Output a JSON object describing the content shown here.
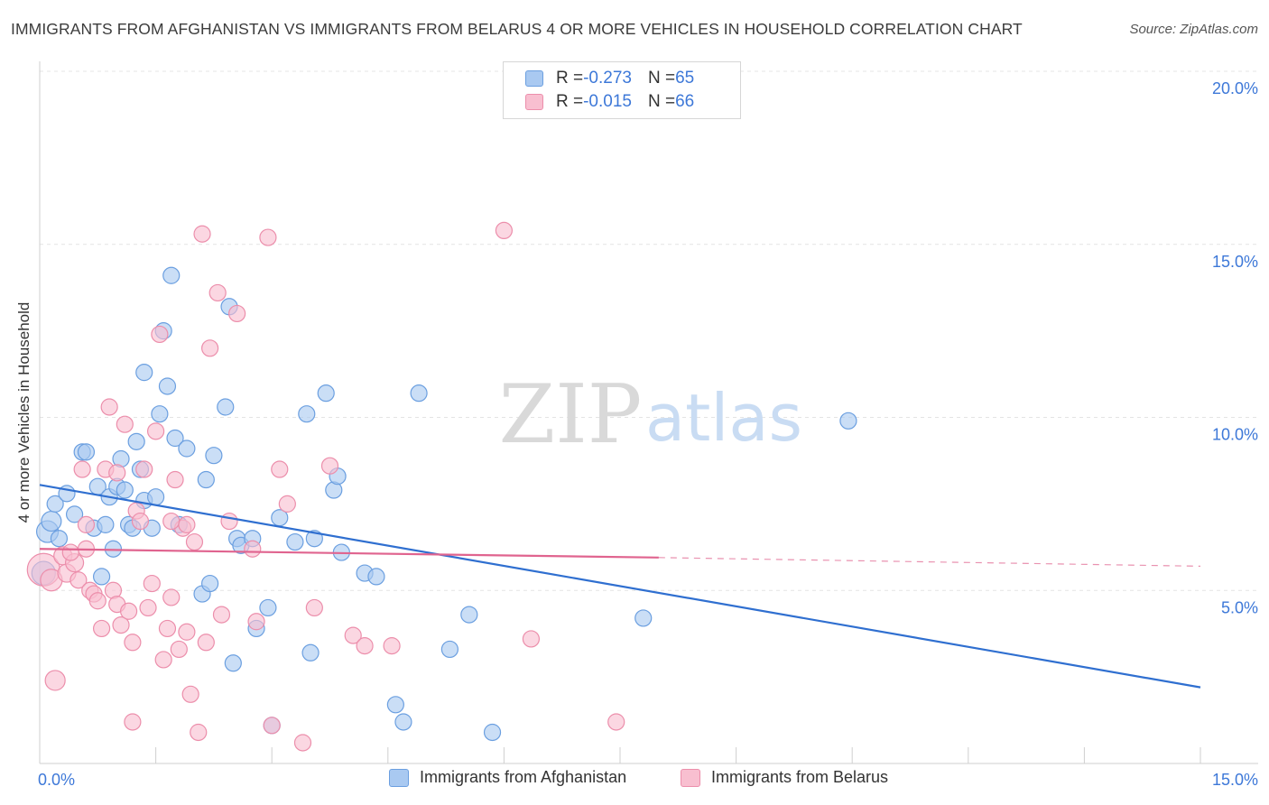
{
  "title": "IMMIGRANTS FROM AFGHANISTAN VS IMMIGRANTS FROM BELARUS 4 OR MORE VEHICLES IN HOUSEHOLD CORRELATION CHART",
  "source": "Source: ZipAtlas.com",
  "watermark": {
    "zip": "ZIP",
    "atlas": "atlas"
  },
  "legend": {
    "rows": [
      {
        "r_label": "R = ",
        "r_value": "-0.273",
        "n_label": "N = ",
        "n_value": "65"
      },
      {
        "r_label": "R = ",
        "r_value": "-0.015",
        "n_label": "N = ",
        "n_value": "66"
      }
    ]
  },
  "chart_data": {
    "type": "scatter",
    "xlabel": "",
    "ylabel": "4 or more Vehicles in Household",
    "xlim": [
      0,
      15
    ],
    "ylim": [
      0,
      20
    ],
    "x_tick_labels": [
      {
        "value": 0,
        "label": "0.0%"
      },
      {
        "value": 15,
        "label": "15.0%"
      }
    ],
    "y_tick_labels": [
      {
        "value": 5,
        "label": "5.0%"
      },
      {
        "value": 10,
        "label": "10.0%"
      },
      {
        "value": 15,
        "label": "15.0%"
      },
      {
        "value": 20,
        "label": "20.0%"
      }
    ],
    "grid": true,
    "colors": {
      "afghanistan_fill": "#a9c9f1",
      "afghanistan_stroke": "#6b9fe0",
      "afghanistan_line": "#2f6fd0",
      "belarus_fill": "#f8bfd0",
      "belarus_stroke": "#ec8eab",
      "belarus_line": "#e0648f",
      "tick_label": "#3d78d8",
      "grid": "#e4e4e4",
      "axis": "#cfcfcf"
    },
    "series": [
      {
        "name": "Immigrants from Afghanistan",
        "points": [
          [
            0.05,
            5.5,
            13
          ],
          [
            0.1,
            6.7,
            12
          ],
          [
            0.15,
            7.0,
            11
          ],
          [
            0.2,
            7.5,
            9
          ],
          [
            0.25,
            6.5,
            9
          ],
          [
            0.35,
            7.8,
            9
          ],
          [
            0.45,
            7.2,
            9
          ],
          [
            0.55,
            9.0,
            9
          ],
          [
            0.6,
            9.0,
            9
          ],
          [
            0.7,
            6.8,
            9
          ],
          [
            0.75,
            8.0,
            9
          ],
          [
            0.8,
            5.4,
            9
          ],
          [
            0.85,
            6.9,
            9
          ],
          [
            0.9,
            7.7,
            9
          ],
          [
            0.95,
            6.2,
            9
          ],
          [
            1.0,
            8.0,
            9
          ],
          [
            1.05,
            8.8,
            9
          ],
          [
            1.1,
            7.9,
            9
          ],
          [
            1.15,
            6.9,
            9
          ],
          [
            1.2,
            6.8,
            9
          ],
          [
            1.25,
            9.3,
            9
          ],
          [
            1.3,
            8.5,
            9
          ],
          [
            1.35,
            7.6,
            9
          ],
          [
            1.35,
            11.3,
            9
          ],
          [
            1.45,
            6.8,
            9
          ],
          [
            1.5,
            7.7,
            9
          ],
          [
            1.55,
            10.1,
            9
          ],
          [
            1.6,
            12.5,
            9
          ],
          [
            1.65,
            10.9,
            9
          ],
          [
            1.7,
            14.1,
            9
          ],
          [
            1.75,
            9.4,
            9
          ],
          [
            1.8,
            6.9,
            9
          ],
          [
            1.9,
            9.1,
            9
          ],
          [
            2.1,
            4.9,
            9
          ],
          [
            2.15,
            8.2,
            9
          ],
          [
            2.2,
            5.2,
            9
          ],
          [
            2.25,
            8.9,
            9
          ],
          [
            2.4,
            10.3,
            9
          ],
          [
            2.45,
            13.2,
            9
          ],
          [
            2.5,
            2.9,
            9
          ],
          [
            2.55,
            6.5,
            9
          ],
          [
            2.6,
            6.3,
            9
          ],
          [
            2.75,
            6.5,
            9
          ],
          [
            2.8,
            3.9,
            9
          ],
          [
            2.95,
            4.5,
            9
          ],
          [
            3.0,
            1.1,
            9
          ],
          [
            3.1,
            7.1,
            9
          ],
          [
            3.3,
            6.4,
            9
          ],
          [
            3.45,
            10.1,
            9
          ],
          [
            3.5,
            3.2,
            9
          ],
          [
            3.55,
            6.5,
            9
          ],
          [
            3.7,
            10.7,
            9
          ],
          [
            3.8,
            7.9,
            9
          ],
          [
            3.85,
            8.3,
            9
          ],
          [
            3.9,
            6.1,
            9
          ],
          [
            4.2,
            5.5,
            9
          ],
          [
            4.35,
            5.4,
            9
          ],
          [
            4.6,
            1.7,
            9
          ],
          [
            4.7,
            1.2,
            9
          ],
          [
            4.9,
            10.7,
            9
          ],
          [
            5.3,
            3.3,
            9
          ],
          [
            5.55,
            4.3,
            9
          ],
          [
            5.85,
            0.9,
            9
          ],
          [
            7.8,
            4.2,
            9
          ],
          [
            10.45,
            9.9,
            9
          ]
        ]
      },
      {
        "name": "Immigrants from Belarus",
        "points": [
          [
            0.05,
            5.6,
            18
          ],
          [
            0.15,
            5.3,
            12
          ],
          [
            0.2,
            2.4,
            11
          ],
          [
            0.3,
            6.0,
            10
          ],
          [
            0.35,
            5.5,
            10
          ],
          [
            0.45,
            5.8,
            10
          ],
          [
            0.5,
            5.3,
            9
          ],
          [
            0.55,
            8.5,
            9
          ],
          [
            0.6,
            6.2,
            9
          ],
          [
            0.65,
            5.0,
            9
          ],
          [
            0.7,
            4.9,
            9
          ],
          [
            0.75,
            4.7,
            9
          ],
          [
            0.8,
            3.9,
            9
          ],
          [
            0.85,
            8.5,
            9
          ],
          [
            0.9,
            10.3,
            9
          ],
          [
            0.95,
            5.0,
            9
          ],
          [
            1.0,
            4.6,
            9
          ],
          [
            1.0,
            8.4,
            9
          ],
          [
            1.05,
            4.0,
            9
          ],
          [
            1.1,
            9.8,
            9
          ],
          [
            1.15,
            4.4,
            9
          ],
          [
            1.2,
            3.5,
            9
          ],
          [
            1.25,
            7.3,
            9
          ],
          [
            1.3,
            7.0,
            9
          ],
          [
            1.35,
            8.5,
            9
          ],
          [
            1.4,
            4.5,
            9
          ],
          [
            1.45,
            5.2,
            9
          ],
          [
            1.5,
            9.6,
            9
          ],
          [
            1.55,
            12.4,
            9
          ],
          [
            1.6,
            3.0,
            9
          ],
          [
            1.65,
            3.9,
            9
          ],
          [
            1.7,
            4.8,
            9
          ],
          [
            1.75,
            8.2,
            9
          ],
          [
            1.8,
            3.3,
            9
          ],
          [
            1.85,
            6.8,
            9
          ],
          [
            1.9,
            3.8,
            9
          ],
          [
            1.95,
            2.0,
            9
          ],
          [
            2.0,
            6.4,
            9
          ],
          [
            2.05,
            0.9,
            9
          ],
          [
            2.1,
            15.3,
            9
          ],
          [
            2.15,
            3.5,
            9
          ],
          [
            2.2,
            12.0,
            9
          ],
          [
            2.3,
            13.6,
            9
          ],
          [
            2.35,
            4.3,
            9
          ],
          [
            2.45,
            7.0,
            9
          ],
          [
            2.55,
            13.0,
            9
          ],
          [
            2.75,
            6.2,
            9
          ],
          [
            2.8,
            4.1,
            9
          ],
          [
            2.95,
            15.2,
            9
          ],
          [
            3.0,
            1.1,
            9
          ],
          [
            3.1,
            8.5,
            9
          ],
          [
            3.2,
            7.5,
            9
          ],
          [
            3.4,
            0.6,
            9
          ],
          [
            3.55,
            4.5,
            9
          ],
          [
            3.75,
            8.6,
            9
          ],
          [
            4.05,
            3.7,
            9
          ],
          [
            4.2,
            3.4,
            9
          ],
          [
            4.55,
            3.4,
            9
          ],
          [
            1.2,
            1.2,
            9
          ],
          [
            1.7,
            7.0,
            9
          ],
          [
            1.9,
            6.9,
            9
          ],
          [
            0.6,
            6.9,
            9
          ],
          [
            6.0,
            15.4,
            9
          ],
          [
            6.35,
            3.6,
            9
          ],
          [
            7.45,
            1.2,
            9
          ],
          [
            0.4,
            6.1,
            9
          ]
        ]
      }
    ],
    "trend_lines": [
      {
        "series": "Immigrants from Afghanistan",
        "x0": 0,
        "y0": 8.05,
        "x1": 15,
        "y1": 2.2,
        "style": "solid"
      },
      {
        "series": "Immigrants from Belarus",
        "x0": 0,
        "y0": 6.2,
        "x1": 8.0,
        "y1": 5.95,
        "style": "solid"
      },
      {
        "series": "Immigrants from Belarus",
        "x0": 8.0,
        "y0": 5.95,
        "x1": 15,
        "y1": 5.7,
        "style": "dashed"
      }
    ]
  }
}
